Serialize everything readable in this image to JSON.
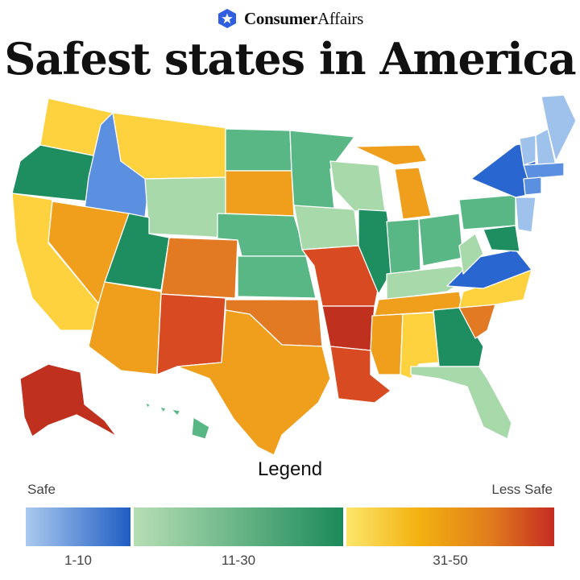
{
  "brand": {
    "name_bold": "Consumer",
    "name_light": "Affairs",
    "icon": "star-hexagon-icon",
    "color": "#2f5fe0"
  },
  "title": "Safest states in America",
  "legend": {
    "title": "Legend",
    "left_label": "Safe",
    "right_label": "Less Safe",
    "bins": [
      {
        "label": "1-10",
        "from": "#aac9ee",
        "to": "#1f5dc4"
      },
      {
        "label": "11-30",
        "from": "#b6dfb3",
        "to": "#1b8a5a"
      },
      {
        "label": "31-50",
        "from": "#fde66c",
        "to": "#c52b22"
      }
    ]
  },
  "palette": {
    "blue_light": "#9fc2ec",
    "blue_mid": "#5b8fe0",
    "blue_dark": "#2a66cf",
    "green_light": "#a8d9aa",
    "green_mid": "#59b786",
    "green_dark": "#1e8d60",
    "yellow": "#fdd23e",
    "orange": "#ef9f1c",
    "orange_dark": "#e17a22",
    "red": "#d84a22",
    "red_dark": "#c0301f"
  },
  "map_shapes": [
    {
      "name": "state-washington",
      "cls": "yellow"
    },
    {
      "name": "state-oregon",
      "cls": "green_dark"
    },
    {
      "name": "state-california",
      "cls": "yellow"
    },
    {
      "name": "state-idaho",
      "cls": "blue_mid"
    },
    {
      "name": "state-nevada",
      "cls": "orange"
    },
    {
      "name": "state-montana",
      "cls": "yellow"
    },
    {
      "name": "state-wyoming",
      "cls": "green_light"
    },
    {
      "name": "state-utah",
      "cls": "green_dark"
    },
    {
      "name": "state-colorado",
      "cls": "orange_dark"
    },
    {
      "name": "state-arizona",
      "cls": "orange"
    },
    {
      "name": "state-new-mexico",
      "cls": "red"
    },
    {
      "name": "state-north-dakota",
      "cls": "green_mid"
    },
    {
      "name": "state-south-dakota",
      "cls": "orange"
    },
    {
      "name": "state-nebraska",
      "cls": "green_mid"
    },
    {
      "name": "state-kansas",
      "cls": "green_mid"
    },
    {
      "name": "state-oklahoma",
      "cls": "orange_dark"
    },
    {
      "name": "state-texas",
      "cls": "orange"
    },
    {
      "name": "state-minnesota",
      "cls": "green_mid"
    },
    {
      "name": "state-iowa",
      "cls": "green_light"
    },
    {
      "name": "state-missouri",
      "cls": "red"
    },
    {
      "name": "state-arkansas",
      "cls": "red_dark"
    },
    {
      "name": "state-louisiana",
      "cls": "red"
    },
    {
      "name": "state-wisconsin",
      "cls": "green_light"
    },
    {
      "name": "state-illinois",
      "cls": "green_dark"
    },
    {
      "name": "state-michigan",
      "cls": "orange"
    },
    {
      "name": "state-indiana",
      "cls": "green_mid"
    },
    {
      "name": "state-ohio",
      "cls": "green_mid"
    },
    {
      "name": "state-kentucky",
      "cls": "green_light"
    },
    {
      "name": "state-tennessee",
      "cls": "orange"
    },
    {
      "name": "state-mississippi",
      "cls": "orange"
    },
    {
      "name": "state-alabama",
      "cls": "yellow"
    },
    {
      "name": "state-georgia",
      "cls": "green_dark"
    },
    {
      "name": "state-florida",
      "cls": "green_light"
    },
    {
      "name": "state-south-carolina",
      "cls": "orange_dark"
    },
    {
      "name": "state-north-carolina",
      "cls": "yellow"
    },
    {
      "name": "state-virginia",
      "cls": "blue_dark"
    },
    {
      "name": "state-west-virginia",
      "cls": "green_light"
    },
    {
      "name": "state-pennsylvania",
      "cls": "green_mid"
    },
    {
      "name": "state-new-york",
      "cls": "blue_dark"
    },
    {
      "name": "state-new-jersey",
      "cls": "blue_light"
    },
    {
      "name": "state-maryland",
      "cls": "green_dark"
    },
    {
      "name": "state-vermont",
      "cls": "blue_light"
    },
    {
      "name": "state-new-hampshire",
      "cls": "blue_light"
    },
    {
      "name": "state-maine",
      "cls": "blue_light"
    },
    {
      "name": "state-massachusetts",
      "cls": "blue_mid"
    },
    {
      "name": "state-connecticut",
      "cls": "blue_mid"
    },
    {
      "name": "state-alaska",
      "cls": "red_dark"
    },
    {
      "name": "state-hawaii",
      "cls": "green_mid"
    }
  ]
}
